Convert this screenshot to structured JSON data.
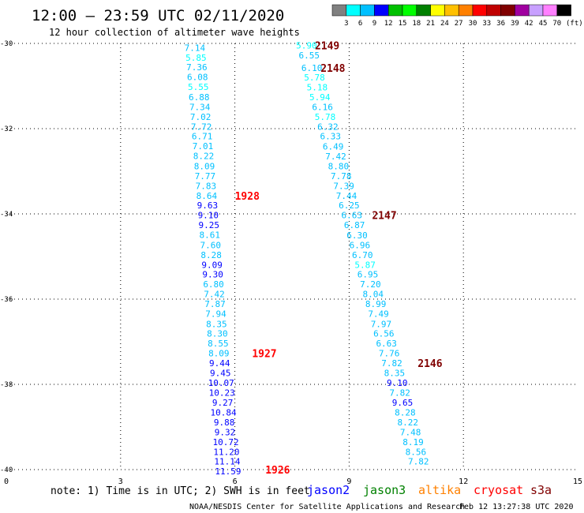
{
  "header": {
    "title": "12:00 – 23:59 UTC 02/11/2020",
    "subtitle": "12 hour collection of altimeter wave heights"
  },
  "colorbar": {
    "labels": [
      "3",
      "6",
      "9",
      "12",
      "15",
      "18",
      "21",
      "24",
      "27",
      "30",
      "33",
      "36",
      "39",
      "42",
      "45",
      "70"
    ],
    "unit": "(ft)",
    "colors": [
      "#808080",
      "#00ffff",
      "#00c0ff",
      "#0000ff",
      "#00c000",
      "#00ff00",
      "#008000",
      "#ffff00",
      "#ffc000",
      "#ff8000",
      "#ff0000",
      "#c00000",
      "#800000",
      "#a000a0",
      "#c8a0ff",
      "#ff80ff",
      "#000000"
    ]
  },
  "footer": {
    "note": "note:  1) Time is in UTC;  2) SWH is in feet",
    "satellites": [
      {
        "name": "jason2",
        "color": "#0000ff"
      },
      {
        "name": "jason3",
        "color": "#008000"
      },
      {
        "name": "altika",
        "color": "#ff8000"
      },
      {
        "name": "cryosat",
        "color": "#ff0000"
      },
      {
        "name": "s3a",
        "color": "#800000"
      }
    ],
    "credit": "NOAA/NESDIS Center for Satellite Applications and Research",
    "timestamp": "Feb 12 13:27:38 UTC 2020"
  },
  "chart_data": {
    "type": "scatter",
    "xlim": [
      0,
      15
    ],
    "ylim": [
      -40,
      -30
    ],
    "x_ticks": [
      0,
      3,
      6,
      9,
      12,
      15
    ],
    "y_ticks": [
      -30,
      -32,
      -34,
      -36,
      -38,
      -40
    ],
    "grid": true,
    "series": [
      {
        "name": "cryosat",
        "color_key": "cryosat",
        "points": [
          {
            "x": 4.95,
            "y": -30.1,
            "v": "7.14",
            "c": "#00c0ff"
          },
          {
            "x": 4.98,
            "y": -30.33,
            "v": "5.85",
            "c": "#00ffff"
          },
          {
            "x": 5.0,
            "y": -30.56,
            "v": "7.36",
            "c": "#00c0ff"
          },
          {
            "x": 5.02,
            "y": -30.79,
            "v": "6.08",
            "c": "#00c0ff"
          },
          {
            "x": 5.04,
            "y": -31.02,
            "v": "5.55",
            "c": "#00ffff"
          },
          {
            "x": 5.06,
            "y": -31.26,
            "v": "6.88",
            "c": "#00c0ff"
          },
          {
            "x": 5.08,
            "y": -31.49,
            "v": "7.34",
            "c": "#00c0ff"
          },
          {
            "x": 5.1,
            "y": -31.72,
            "v": "7.02",
            "c": "#00c0ff"
          },
          {
            "x": 5.12,
            "y": -31.95,
            "v": "7.72",
            "c": "#00c0ff"
          },
          {
            "x": 5.14,
            "y": -32.18,
            "v": "6.71",
            "c": "#00c0ff"
          },
          {
            "x": 5.16,
            "y": -32.41,
            "v": "7.01",
            "c": "#00c0ff"
          },
          {
            "x": 5.18,
            "y": -32.64,
            "v": "8.22",
            "c": "#00c0ff"
          },
          {
            "x": 5.2,
            "y": -32.88,
            "v": "8.09",
            "c": "#00c0ff"
          },
          {
            "x": 5.22,
            "y": -33.11,
            "v": "7.77",
            "c": "#00c0ff"
          },
          {
            "x": 5.24,
            "y": -33.34,
            "v": "7.83",
            "c": "#00c0ff"
          },
          {
            "x": 5.26,
            "y": -33.57,
            "v": "8.64",
            "c": "#00c0ff"
          },
          {
            "x": 5.28,
            "y": -33.8,
            "v": "9.63",
            "c": "#0000ff"
          },
          {
            "x": 5.3,
            "y": -34.03,
            "v": "9.10",
            "c": "#0000ff"
          },
          {
            "x": 5.32,
            "y": -34.26,
            "v": "9.25",
            "c": "#0000ff"
          },
          {
            "x": 5.34,
            "y": -34.49,
            "v": "8.61",
            "c": "#00c0ff"
          },
          {
            "x": 5.36,
            "y": -34.73,
            "v": "7.60",
            "c": "#00c0ff"
          },
          {
            "x": 5.38,
            "y": -34.96,
            "v": "8.28",
            "c": "#00c0ff"
          },
          {
            "x": 5.4,
            "y": -35.19,
            "v": "9.09",
            "c": "#0000ff"
          },
          {
            "x": 5.42,
            "y": -35.42,
            "v": "9.30",
            "c": "#0000ff"
          },
          {
            "x": 5.44,
            "y": -35.65,
            "v": "6.80",
            "c": "#00c0ff"
          },
          {
            "x": 5.46,
            "y": -35.88,
            "v": "7.42",
            "c": "#00c0ff"
          },
          {
            "x": 5.48,
            "y": -36.11,
            "v": "7.87",
            "c": "#00c0ff"
          },
          {
            "x": 5.5,
            "y": -36.34,
            "v": "7.94",
            "c": "#00c0ff"
          },
          {
            "x": 5.52,
            "y": -36.58,
            "v": "8.35",
            "c": "#00c0ff"
          },
          {
            "x": 5.54,
            "y": -36.81,
            "v": "8.30",
            "c": "#00c0ff"
          },
          {
            "x": 5.56,
            "y": -37.04,
            "v": "8.55",
            "c": "#00c0ff"
          },
          {
            "x": 5.58,
            "y": -37.27,
            "v": "8.09",
            "c": "#00c0ff"
          },
          {
            "x": 5.6,
            "y": -37.5,
            "v": "9.44",
            "c": "#0000ff"
          },
          {
            "x": 5.62,
            "y": -37.73,
            "v": "9.45",
            "c": "#0000ff"
          },
          {
            "x": 5.64,
            "y": -37.96,
            "v": "10.07",
            "c": "#0000ff"
          },
          {
            "x": 5.66,
            "y": -38.19,
            "v": "10.23",
            "c": "#0000ff"
          },
          {
            "x": 5.68,
            "y": -38.43,
            "v": "9.27",
            "c": "#0000ff"
          },
          {
            "x": 5.7,
            "y": -38.66,
            "v": "10.84",
            "c": "#0000ff"
          },
          {
            "x": 5.72,
            "y": -38.89,
            "v": "9.88",
            "c": "#0000ff"
          },
          {
            "x": 5.74,
            "y": -39.12,
            "v": "9.32",
            "c": "#0000ff"
          },
          {
            "x": 5.76,
            "y": -39.35,
            "v": "10.72",
            "c": "#0000ff"
          },
          {
            "x": 5.78,
            "y": -39.58,
            "v": "11.20",
            "c": "#0000ff"
          },
          {
            "x": 5.8,
            "y": -39.81,
            "v": "11.14",
            "c": "#0000ff"
          },
          {
            "x": 5.82,
            "y": -40.04,
            "v": "11.59",
            "c": "#0000ff"
          }
        ],
        "pass_labels": [
          {
            "x": 6.0,
            "y": -33.57,
            "text": "1928"
          },
          {
            "x": 6.45,
            "y": -37.27,
            "text": "1927"
          },
          {
            "x": 6.8,
            "y": -40.0,
            "text": "1926"
          }
        ]
      },
      {
        "name": "s3a",
        "color_key": "s3a",
        "points": [
          {
            "x": 7.88,
            "y": -30.05,
            "v": "5.90",
            "c": "#00ffff"
          },
          {
            "x": 7.95,
            "y": -30.28,
            "v": "6.55",
            "c": "#00c0ff"
          },
          {
            "x": 8.02,
            "y": -30.57,
            "v": "6.10",
            "c": "#00c0ff"
          },
          {
            "x": 8.09,
            "y": -30.8,
            "v": "5.78",
            "c": "#00ffff"
          },
          {
            "x": 8.16,
            "y": -31.03,
            "v": "5.18",
            "c": "#00ffff"
          },
          {
            "x": 8.23,
            "y": -31.26,
            "v": "5.94",
            "c": "#00ffff"
          },
          {
            "x": 8.3,
            "y": -31.49,
            "v": "6.16",
            "c": "#00c0ff"
          },
          {
            "x": 8.37,
            "y": -31.72,
            "v": "5.78",
            "c": "#00ffff"
          },
          {
            "x": 8.44,
            "y": -31.95,
            "v": "6.32",
            "c": "#00c0ff"
          },
          {
            "x": 8.51,
            "y": -32.18,
            "v": "6.33",
            "c": "#00c0ff"
          },
          {
            "x": 8.58,
            "y": -32.42,
            "v": "6.49",
            "c": "#00c0ff"
          },
          {
            "x": 8.65,
            "y": -32.65,
            "v": "7.42",
            "c": "#00c0ff"
          },
          {
            "x": 8.72,
            "y": -32.88,
            "v": "8.80",
            "c": "#00c0ff"
          },
          {
            "x": 8.79,
            "y": -33.11,
            "v": "7.78",
            "c": "#00c0ff"
          },
          {
            "x": 8.86,
            "y": -33.34,
            "v": "7.39",
            "c": "#00c0ff"
          },
          {
            "x": 8.93,
            "y": -33.57,
            "v": "7.44",
            "c": "#00c0ff"
          },
          {
            "x": 9.0,
            "y": -33.8,
            "v": "6.25",
            "c": "#00c0ff"
          },
          {
            "x": 9.07,
            "y": -34.03,
            "v": "6.63",
            "c": "#00c0ff"
          },
          {
            "x": 9.14,
            "y": -34.26,
            "v": "6.87",
            "c": "#00c0ff"
          },
          {
            "x": 9.21,
            "y": -34.5,
            "v": "6.30",
            "c": "#00c0ff"
          },
          {
            "x": 9.28,
            "y": -34.73,
            "v": "6.96",
            "c": "#00c0ff"
          },
          {
            "x": 9.35,
            "y": -34.96,
            "v": "6.70",
            "c": "#00c0ff"
          },
          {
            "x": 9.42,
            "y": -35.19,
            "v": "5.87",
            "c": "#00ffff"
          },
          {
            "x": 9.49,
            "y": -35.42,
            "v": "6.95",
            "c": "#00c0ff"
          },
          {
            "x": 9.56,
            "y": -35.65,
            "v": "7.20",
            "c": "#00c0ff"
          },
          {
            "x": 9.63,
            "y": -35.88,
            "v": "8.04",
            "c": "#00c0ff"
          },
          {
            "x": 9.7,
            "y": -36.11,
            "v": "8.99",
            "c": "#00c0ff"
          },
          {
            "x": 9.77,
            "y": -36.34,
            "v": "7.49",
            "c": "#00c0ff"
          },
          {
            "x": 9.84,
            "y": -36.58,
            "v": "7.97",
            "c": "#00c0ff"
          },
          {
            "x": 9.91,
            "y": -36.81,
            "v": "6.56",
            "c": "#00c0ff"
          },
          {
            "x": 9.98,
            "y": -37.04,
            "v": "6.63",
            "c": "#00c0ff"
          },
          {
            "x": 10.05,
            "y": -37.27,
            "v": "7.76",
            "c": "#00c0ff"
          },
          {
            "x": 10.12,
            "y": -37.5,
            "v": "7.82",
            "c": "#00c0ff"
          },
          {
            "x": 10.19,
            "y": -37.73,
            "v": "8.35",
            "c": "#00c0ff"
          },
          {
            "x": 10.26,
            "y": -37.96,
            "v": "9.10",
            "c": "#0000ff"
          },
          {
            "x": 10.33,
            "y": -38.19,
            "v": "7.82",
            "c": "#00c0ff"
          },
          {
            "x": 10.4,
            "y": -38.43,
            "v": "9.65",
            "c": "#0000ff"
          },
          {
            "x": 10.47,
            "y": -38.66,
            "v": "8.28",
            "c": "#00c0ff"
          },
          {
            "x": 10.54,
            "y": -38.89,
            "v": "8.22",
            "c": "#00c0ff"
          },
          {
            "x": 10.61,
            "y": -39.12,
            "v": "7.48",
            "c": "#00c0ff"
          },
          {
            "x": 10.68,
            "y": -39.35,
            "v": "8.19",
            "c": "#00c0ff"
          },
          {
            "x": 10.75,
            "y": -39.58,
            "v": "8.56",
            "c": "#00c0ff"
          },
          {
            "x": 10.82,
            "y": -39.81,
            "v": "7.82",
            "c": "#00c0ff"
          }
        ],
        "pass_labels": [
          {
            "x": 8.1,
            "y": -30.05,
            "text": "2149"
          },
          {
            "x": 8.25,
            "y": -30.57,
            "text": "2148"
          },
          {
            "x": 9.6,
            "y": -34.03,
            "text": "2147"
          },
          {
            "x": 10.8,
            "y": -37.5,
            "text": "2146"
          }
        ]
      }
    ]
  }
}
